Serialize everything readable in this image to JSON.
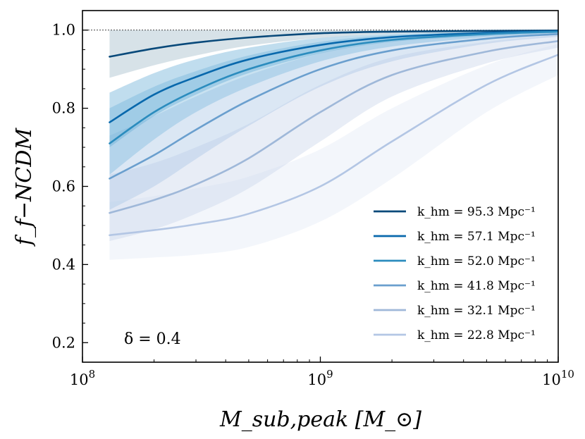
{
  "chart_data": {
    "type": "line",
    "xscale": "log",
    "xlim": [
      100000000,
      10000000000
    ],
    "ylim": [
      0.15,
      1.05
    ],
    "xlabel": "M_sub,peak [M_⊙]",
    "ylabel": "f_f−NCDM",
    "x_ticks": [
      {
        "value": 100000000,
        "base": "10",
        "exp": "8"
      },
      {
        "value": 1000000000,
        "base": "10",
        "exp": "9"
      },
      {
        "value": 10000000000,
        "base": "10",
        "exp": "10"
      }
    ],
    "y_ticks": [
      {
        "value": 0.2,
        "label": "0.2"
      },
      {
        "value": 0.4,
        "label": "0.4"
      },
      {
        "value": 0.6,
        "label": "0.6"
      },
      {
        "value": 0.8,
        "label": "0.8"
      },
      {
        "value": 1.0,
        "label": "1.0"
      }
    ],
    "reference_line": {
      "y": 1.0,
      "style": "dotted"
    },
    "annotation": "δ = 0.4",
    "legend_position": "lower-right",
    "x_start": 130000000,
    "series": [
      {
        "name": "k_hm = 95.3 Mpc⁻¹",
        "k_hm": "95.3",
        "color": "#08497a",
        "band_color": "#9fb9c8",
        "x": [
          130000000,
          200000000,
          300000000,
          500000000,
          1000000000,
          2000000000,
          5000000000,
          10000000000
        ],
        "y": [
          0.932,
          0.953,
          0.968,
          0.981,
          0.992,
          0.996,
          0.998,
          0.999
        ],
        "lower": [
          0.878,
          0.91,
          0.935,
          0.96,
          0.98,
          0.99,
          0.995,
          0.998
        ],
        "upper": [
          1.0,
          1.0,
          1.0,
          1.0,
          1.0,
          1.0,
          1.0,
          1.0
        ]
      },
      {
        "name": "k_hm = 57.1 Mpc⁻¹",
        "k_hm": "57.1",
        "color": "#0868ac",
        "band_color": "#6aafd6",
        "x": [
          130000000,
          200000000,
          300000000,
          500000000,
          1000000000,
          2000000000,
          5000000000,
          10000000000
        ],
        "y": [
          0.764,
          0.835,
          0.88,
          0.925,
          0.962,
          0.982,
          0.993,
          0.997
        ],
        "lower": [
          0.7,
          0.78,
          0.835,
          0.89,
          0.94,
          0.97,
          0.985,
          0.993
        ],
        "upper": [
          0.84,
          0.89,
          0.925,
          0.955,
          0.98,
          0.99,
          0.997,
          1.0
        ]
      },
      {
        "name": "k_hm = 52.0 Mpc⁻¹",
        "k_hm": "52.0",
        "color": "#2b8cbe",
        "band_color": "#7fb9dd",
        "x": [
          130000000,
          200000000,
          300000000,
          500000000,
          1000000000,
          2000000000,
          5000000000,
          10000000000
        ],
        "y": [
          0.71,
          0.79,
          0.846,
          0.9,
          0.948,
          0.975,
          0.99,
          0.996
        ],
        "lower": [
          0.63,
          0.72,
          0.79,
          0.855,
          0.92,
          0.958,
          0.982,
          0.992
        ],
        "upper": [
          0.8,
          0.855,
          0.895,
          0.935,
          0.97,
          0.987,
          0.995,
          0.999
        ]
      },
      {
        "name": "k_hm = 41.8 Mpc⁻¹",
        "k_hm": "41.8",
        "color": "#6a9fce",
        "band_color": "#a9c6e4",
        "x": [
          130000000,
          200000000,
          300000000,
          500000000,
          1000000000,
          2000000000,
          5000000000,
          10000000000
        ],
        "y": [
          0.62,
          0.68,
          0.745,
          0.82,
          0.9,
          0.948,
          0.978,
          0.99
        ],
        "lower": [
          0.54,
          0.6,
          0.67,
          0.755,
          0.855,
          0.92,
          0.965,
          0.983
        ],
        "upper": [
          0.73,
          0.78,
          0.83,
          0.885,
          0.94,
          0.972,
          0.99,
          0.997
        ]
      },
      {
        "name": "k_hm = 32.1 Mpc⁻¹",
        "k_hm": "32.1",
        "color": "#9fb8d9",
        "band_color": "#c9d5ea",
        "x": [
          130000000,
          200000000,
          300000000,
          500000000,
          1000000000,
          2000000000,
          5000000000,
          10000000000
        ],
        "y": [
          0.532,
          0.565,
          0.605,
          0.672,
          0.79,
          0.885,
          0.945,
          0.972
        ],
        "lower": [
          0.46,
          0.49,
          0.53,
          0.595,
          0.715,
          0.83,
          0.915,
          0.955
        ],
        "upper": [
          0.63,
          0.66,
          0.7,
          0.76,
          0.86,
          0.93,
          0.97,
          0.988
        ]
      },
      {
        "name": "k_hm = 22.8 Mpc⁻¹",
        "k_hm": "22.8",
        "color": "#b3c6e4",
        "band_color": "#e2e9f5",
        "x": [
          130000000,
          200000000,
          300000000,
          500000000,
          1000000000,
          2000000000,
          5000000000,
          10000000000
        ],
        "y": [
          0.475,
          0.488,
          0.503,
          0.53,
          0.6,
          0.715,
          0.86,
          0.937
        ],
        "lower": [
          0.412,
          0.418,
          0.425,
          0.445,
          0.51,
          0.62,
          0.79,
          0.885
        ],
        "upper": [
          0.56,
          0.575,
          0.595,
          0.625,
          0.695,
          0.8,
          0.91,
          0.965
        ]
      }
    ]
  }
}
